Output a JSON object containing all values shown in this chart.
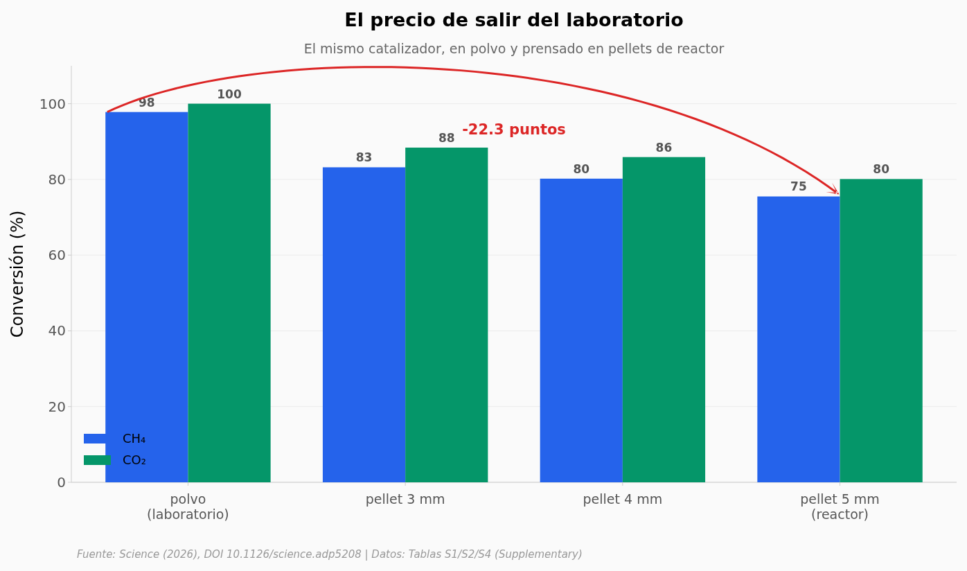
{
  "chart_data": {
    "type": "bar",
    "title": "El precio de salir del laboratorio",
    "subtitle": "El mismo catalizador, en polvo y prensado en pellets de reactor",
    "ylabel": "Conversión  (%)",
    "categories": [
      "polvo\n(laboratorio)",
      "pellet 3 mm",
      "pellet 4 mm",
      "pellet 5 mm\n(reactor)"
    ],
    "series": [
      {
        "name": "CH₄",
        "color": "#2563eb",
        "values": [
          97.8,
          83.2,
          80.2,
          75.5
        ],
        "value_labels": [
          "98",
          "83",
          "80",
          "75"
        ]
      },
      {
        "name": "CO₂",
        "color": "#059669",
        "values": [
          100,
          88.4,
          85.9,
          80.1
        ],
        "value_labels": [
          "100",
          "88",
          "86",
          "80"
        ]
      }
    ],
    "ylim": [
      0,
      110
    ],
    "yticks": [
      0,
      20,
      40,
      60,
      80,
      100
    ],
    "grid": "y",
    "legend": "bottom left",
    "annotations": [
      "-22.3 puntos",
      "Fuente: Science (2026), DOI 10.1126/science.adp5208 | Datos: Tablas S1/S2/S4 (Supplementary)"
    ]
  }
}
